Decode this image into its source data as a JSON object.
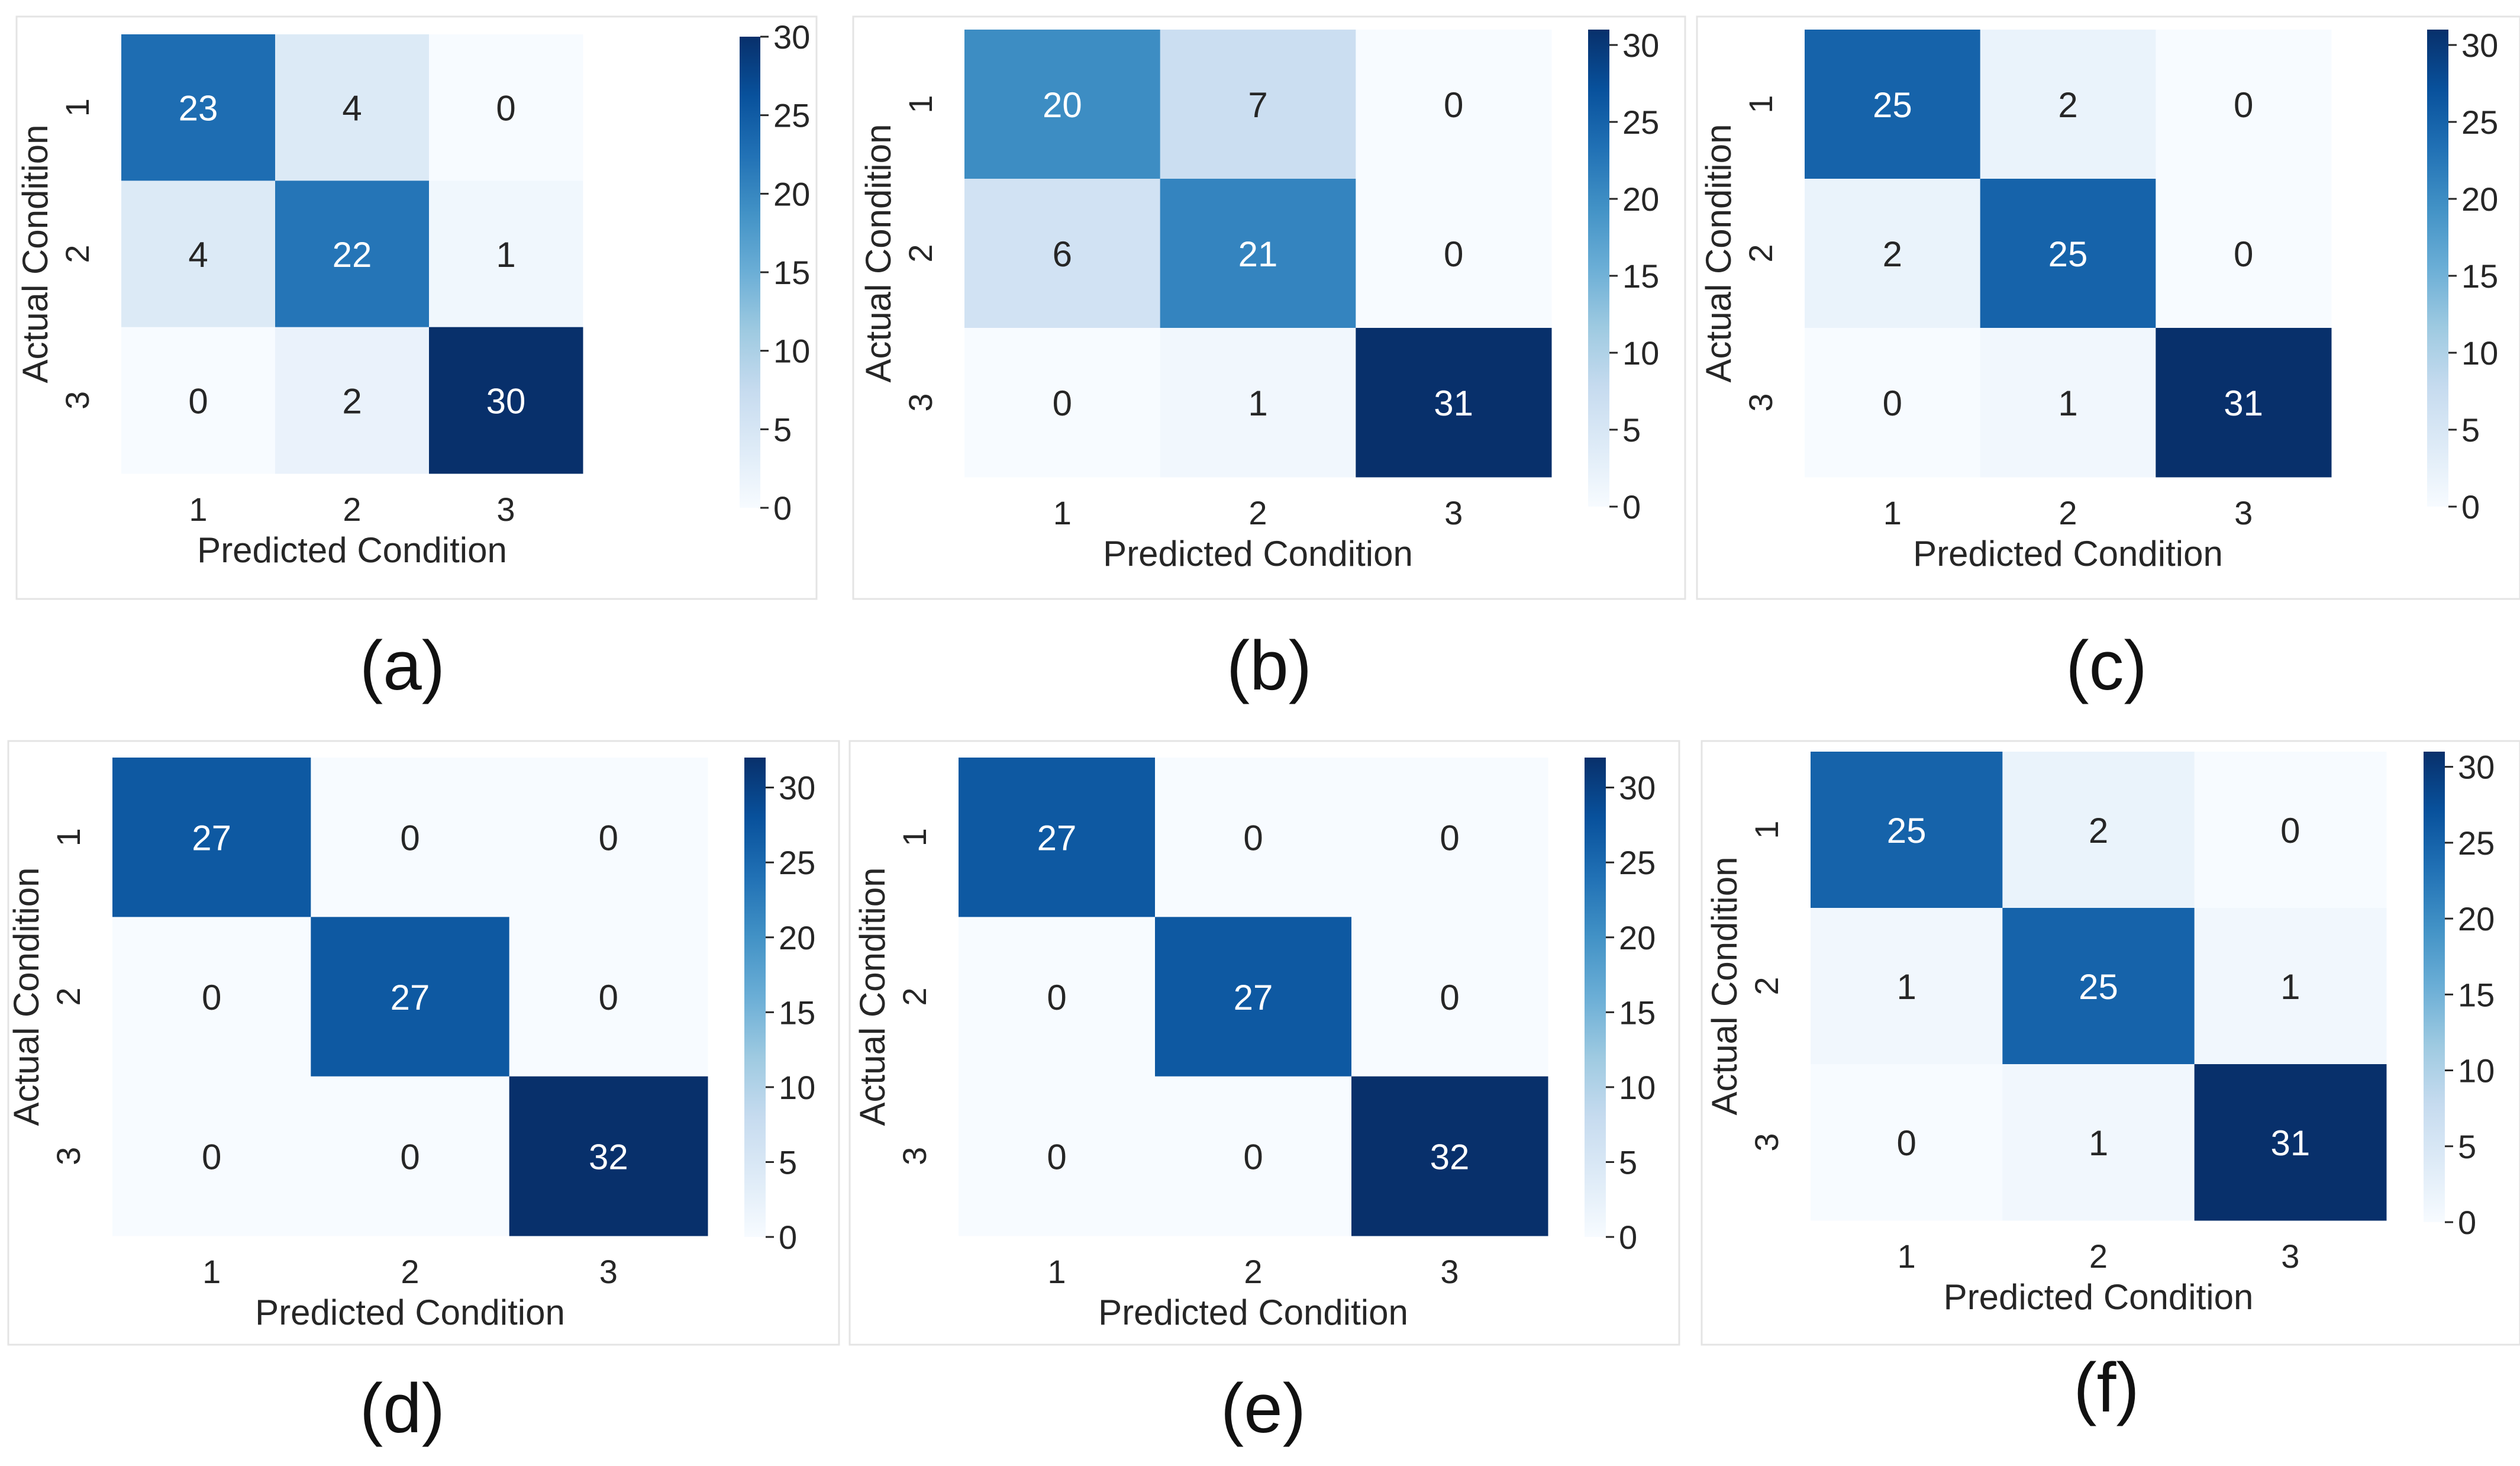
{
  "figure": {
    "panels": [
      {
        "caption": "(a)"
      },
      {
        "caption": "(b)"
      },
      {
        "caption": "(c)"
      },
      {
        "caption": "(d)"
      },
      {
        "caption": "(e)"
      },
      {
        "caption": "(f)"
      }
    ]
  },
  "chart_data": [
    {
      "type": "heatmap",
      "panel": "(a)",
      "title": "",
      "xlabel": "Predicted Condition",
      "ylabel": "Actual Condition",
      "x_categories": [
        "1",
        "2",
        "3"
      ],
      "y_categories": [
        "1",
        "2",
        "3"
      ],
      "values": [
        [
          23,
          4,
          0
        ],
        [
          4,
          22,
          1
        ],
        [
          0,
          2,
          30
        ]
      ],
      "colorbar": {
        "colormap": "Blues",
        "min": 0,
        "max": 30,
        "ticks": [
          0,
          5,
          10,
          15,
          20,
          25,
          30
        ]
      }
    },
    {
      "type": "heatmap",
      "panel": "(b)",
      "title": "",
      "xlabel": "Predicted Condition",
      "ylabel": "Actual Condition",
      "x_categories": [
        "1",
        "2",
        "3"
      ],
      "y_categories": [
        "1",
        "2",
        "3"
      ],
      "values": [
        [
          20,
          7,
          0
        ],
        [
          6,
          21,
          0
        ],
        [
          0,
          1,
          31
        ]
      ],
      "colorbar": {
        "colormap": "Blues",
        "min": 0,
        "max": 31,
        "ticks": [
          0,
          5,
          10,
          15,
          20,
          25,
          30
        ]
      }
    },
    {
      "type": "heatmap",
      "panel": "(c)",
      "title": "",
      "xlabel": "Predicted Condition",
      "ylabel": "Actual Condition",
      "x_categories": [
        "1",
        "2",
        "3"
      ],
      "y_categories": [
        "1",
        "2",
        "3"
      ],
      "values": [
        [
          25,
          2,
          0
        ],
        [
          2,
          25,
          0
        ],
        [
          0,
          1,
          31
        ]
      ],
      "colorbar": {
        "colormap": "Blues",
        "min": 0,
        "max": 31,
        "ticks": [
          0,
          5,
          10,
          15,
          20,
          25,
          30
        ]
      }
    },
    {
      "type": "heatmap",
      "panel": "(d)",
      "title": "",
      "xlabel": "Predicted Condition",
      "ylabel": "Actual Condition",
      "x_categories": [
        "1",
        "2",
        "3"
      ],
      "y_categories": [
        "1",
        "2",
        "3"
      ],
      "values": [
        [
          27,
          0,
          0
        ],
        [
          0,
          27,
          0
        ],
        [
          0,
          0,
          32
        ]
      ],
      "colorbar": {
        "colormap": "Blues",
        "min": 0,
        "max": 32,
        "ticks": [
          0,
          5,
          10,
          15,
          20,
          25,
          30
        ]
      }
    },
    {
      "type": "heatmap",
      "panel": "(e)",
      "title": "",
      "xlabel": "Predicted Condition",
      "ylabel": "Actual Condition",
      "x_categories": [
        "1",
        "2",
        "3"
      ],
      "y_categories": [
        "1",
        "2",
        "3"
      ],
      "values": [
        [
          27,
          0,
          0
        ],
        [
          0,
          27,
          0
        ],
        [
          0,
          0,
          32
        ]
      ],
      "colorbar": {
        "colormap": "Blues",
        "min": 0,
        "max": 32,
        "ticks": [
          0,
          5,
          10,
          15,
          20,
          25,
          30
        ]
      }
    },
    {
      "type": "heatmap",
      "panel": "(f)",
      "title": "",
      "xlabel": "Predicted Condition",
      "ylabel": "Actual Condition",
      "x_categories": [
        "1",
        "2",
        "3"
      ],
      "y_categories": [
        "1",
        "2",
        "3"
      ],
      "values": [
        [
          25,
          2,
          0
        ],
        [
          1,
          25,
          1
        ],
        [
          0,
          1,
          31
        ]
      ],
      "colorbar": {
        "colormap": "Blues",
        "min": 0,
        "max": 31,
        "ticks": [
          0,
          5,
          10,
          15,
          20,
          25,
          30
        ]
      }
    }
  ]
}
